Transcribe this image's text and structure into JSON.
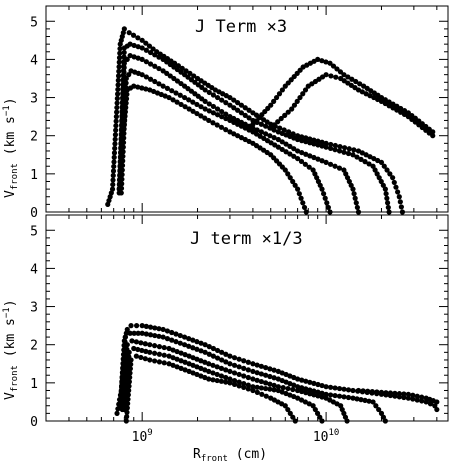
{
  "chart_data": {
    "type": "scatter",
    "x_scale": "log",
    "xlim": [
      300000000.0,
      46000000000.0
    ],
    "ylim": [
      0,
      5.4
    ],
    "xlabel": {
      "main": "R",
      "sub": "front",
      "unit": " (cm)"
    },
    "ylabel": {
      "main": "V",
      "sub": "front",
      "unit": " (km s",
      "exp": "−1",
      "close": ")"
    },
    "x_tick_labels": [
      {
        "value": 1000000000.0,
        "base": "10",
        "exp": "9"
      },
      {
        "value": 10000000000.0,
        "base": "10",
        "exp": "10"
      }
    ],
    "y_ticks": [
      0,
      1,
      2,
      3,
      4,
      5
    ],
    "panels": [
      {
        "label": "J Term ×3",
        "sequences": [
          {
            "x": [
              650000000.0,
              690000000.0,
              760000000.0,
              800000000.0,
              850000000.0,
              1000000000.0,
              1200000000.0,
              1500000000.0,
              2000000000.0,
              2500000000.0,
              3000000000.0,
              4000000000.0,
              5000000000.0,
              7000000000.0,
              10000000000.0,
              15000000000.0,
              20000000000.0,
              23000000000.0,
              25000000000.0,
              26000000000.0
            ],
            "y": [
              0.2,
              0.6,
              4.4,
              4.8,
              4.7,
              4.5,
              4.2,
              3.9,
              3.5,
              3.2,
              3.0,
              2.6,
              2.3,
              2.0,
              1.8,
              1.6,
              1.3,
              0.9,
              0.4,
              0.0
            ]
          },
          {
            "x": [
              750000000.0,
              800000000.0,
              860000000.0,
              1000000000.0,
              1300000000.0,
              1700000000.0,
              2200000000.0,
              3000000000.0,
              4000000000.0,
              5500000000.0,
              7000000000.0,
              10000000000.0,
              14000000000.0,
              18000000000.0,
              21000000000.0,
              22000000000.0
            ],
            "y": [
              0.5,
              4.3,
              4.4,
              4.3,
              4.0,
              3.6,
              3.2,
              2.8,
              2.4,
              2.1,
              1.9,
              1.7,
              1.5,
              1.2,
              0.6,
              0.0
            ]
          },
          {
            "x": [
              750000000.0,
              800000000.0,
              860000000.0,
              1000000000.0,
              1300000000.0,
              1700000000.0,
              2200000000.0,
              3000000000.0,
              4000000000.0,
              5500000000.0,
              7000000000.0,
              10000000000.0,
              12500000000.0,
              14000000000.0,
              15000000000.0
            ],
            "y": [
              0.6,
              3.9,
              4.1,
              4.0,
              3.7,
              3.3,
              2.9,
              2.5,
              2.2,
              1.9,
              1.6,
              1.3,
              1.1,
              0.6,
              0.0
            ]
          },
          {
            "x": [
              770000000.0,
              820000000.0,
              870000000.0,
              1000000000.0,
              1300000000.0,
              1700000000.0,
              2200000000.0,
              3000000000.0,
              4000000000.0,
              5500000000.0,
              7000000000.0,
              8500000000.0,
              9500000000.0,
              10500000000.0
            ],
            "y": [
              0.5,
              3.5,
              3.7,
              3.6,
              3.3,
              3.0,
              2.7,
              2.4,
              2.1,
              1.7,
              1.4,
              1.1,
              0.6,
              0.0
            ]
          },
          {
            "x": [
              780000000.0,
              830000000.0,
              900000000.0,
              1100000000.0,
              1400000000.0,
              1800000000.0,
              2300000000.0,
              3000000000.0,
              4000000000.0,
              5000000000.0,
              6000000000.0,
              7000000000.0,
              7800000000.0
            ],
            "y": [
              1.7,
              3.2,
              3.3,
              3.2,
              3.0,
              2.7,
              2.4,
              2.1,
              1.8,
              1.5,
              1.1,
              0.6,
              0.0
            ]
          },
          {
            "x": [
              4000000000.0,
              5000000000.0,
              6000000000.0,
              7500000000.0,
              9000000000.0,
              10500000000.0,
              12500000000.0,
              16000000000.0,
              20000000000.0,
              28000000000.0,
              38000000000.0
            ],
            "y": [
              2.3,
              2.8,
              3.3,
              3.8,
              4.0,
              3.9,
              3.6,
              3.3,
              3.0,
              2.6,
              2.1
            ]
          },
          {
            "x": [
              5000000000.0,
              6500000000.0,
              8000000000.0,
              10000000000.0,
              12000000000.0,
              15000000000.0,
              20000000000.0,
              28000000000.0,
              38000000000.0
            ],
            "y": [
              2.2,
              2.7,
              3.3,
              3.6,
              3.5,
              3.2,
              2.9,
              2.5,
              2.0
            ]
          }
        ]
      },
      {
        "label": "J term  ×1/3",
        "sequences": [
          {
            "x": [
              730000000.0,
              770000000.0,
              800000000.0,
              830000000.0,
              870000000.0,
              1000000000.0,
              1300000000.0,
              1700000000.0,
              2200000000.0,
              3000000000.0,
              4000000000.0,
              5500000000.0,
              7000000000.0,
              10000000000.0,
              14000000000.0,
              20000000000.0,
              28000000000.0,
              35000000000.0,
              39000000000.0,
              40000000000.0
            ],
            "y": [
              0.2,
              0.8,
              2.1,
              2.4,
              2.5,
              2.5,
              2.4,
              2.2,
              2.0,
              1.7,
              1.5,
              1.3,
              1.1,
              0.9,
              0.8,
              0.7,
              0.6,
              0.5,
              0.4,
              0.3
            ]
          },
          {
            "x": [
              760000000.0,
              810000000.0,
              860000000.0,
              1000000000.0,
              1300000000.0,
              1700000000.0,
              2200000000.0,
              3000000000.0,
              4000000000.0,
              5500000000.0,
              7000000000.0,
              10000000000.0,
              14000000000.0,
              18000000000.0,
              20000000000.0,
              21000000000.0
            ],
            "y": [
              0.4,
              2.2,
              2.3,
              2.3,
              2.2,
              2.0,
              1.8,
              1.5,
              1.3,
              1.1,
              0.9,
              0.7,
              0.6,
              0.5,
              0.2,
              0.0
            ]
          },
          {
            "x": [
              780000000.0,
              830000000.0,
              880000000.0,
              1100000000.0,
              1400000000.0,
              1800000000.0,
              2300000000.0,
              3000000000.0,
              4000000000.0,
              5500000000.0,
              7000000000.0,
              10000000000.0,
              12000000000.0,
              13000000000.0
            ],
            "y": [
              0.3,
              2.0,
              2.1,
              2.0,
              1.9,
              1.7,
              1.5,
              1.3,
              1.1,
              0.9,
              0.8,
              0.6,
              0.4,
              0.0
            ]
          },
          {
            "x": [
              800000000.0,
              850000000.0,
              900000000.0,
              1100000000.0,
              1400000000.0,
              1800000000.0,
              2300000000.0,
              3000000000.0,
              4000000000.0,
              5500000000.0,
              7000000000.0,
              8500000000.0,
              9500000000.0
            ],
            "y": [
              0.3,
              1.8,
              1.9,
              1.8,
              1.7,
              1.5,
              1.3,
              1.1,
              0.9,
              0.8,
              0.6,
              0.4,
              0.0
            ]
          },
          {
            "x": [
              820000000.0,
              870000000.0,
              930000000.0,
              1100000000.0,
              1400000000.0,
              1800000000.0,
              2300000000.0,
              3000000000.0,
              4000000000.0,
              5000000000.0,
              6000000000.0,
              6800000000.0
            ],
            "y": [
              0.0,
              1.6,
              1.7,
              1.6,
              1.5,
              1.3,
              1.1,
              1.0,
              0.8,
              0.6,
              0.4,
              0.0
            ]
          },
          {
            "x": [
              15000000000.0,
              20000000000.0,
              28000000000.0,
              35000000000.0,
              40000000000.0
            ],
            "y": [
              0.8,
              0.75,
              0.7,
              0.6,
              0.5
            ]
          }
        ]
      }
    ]
  }
}
